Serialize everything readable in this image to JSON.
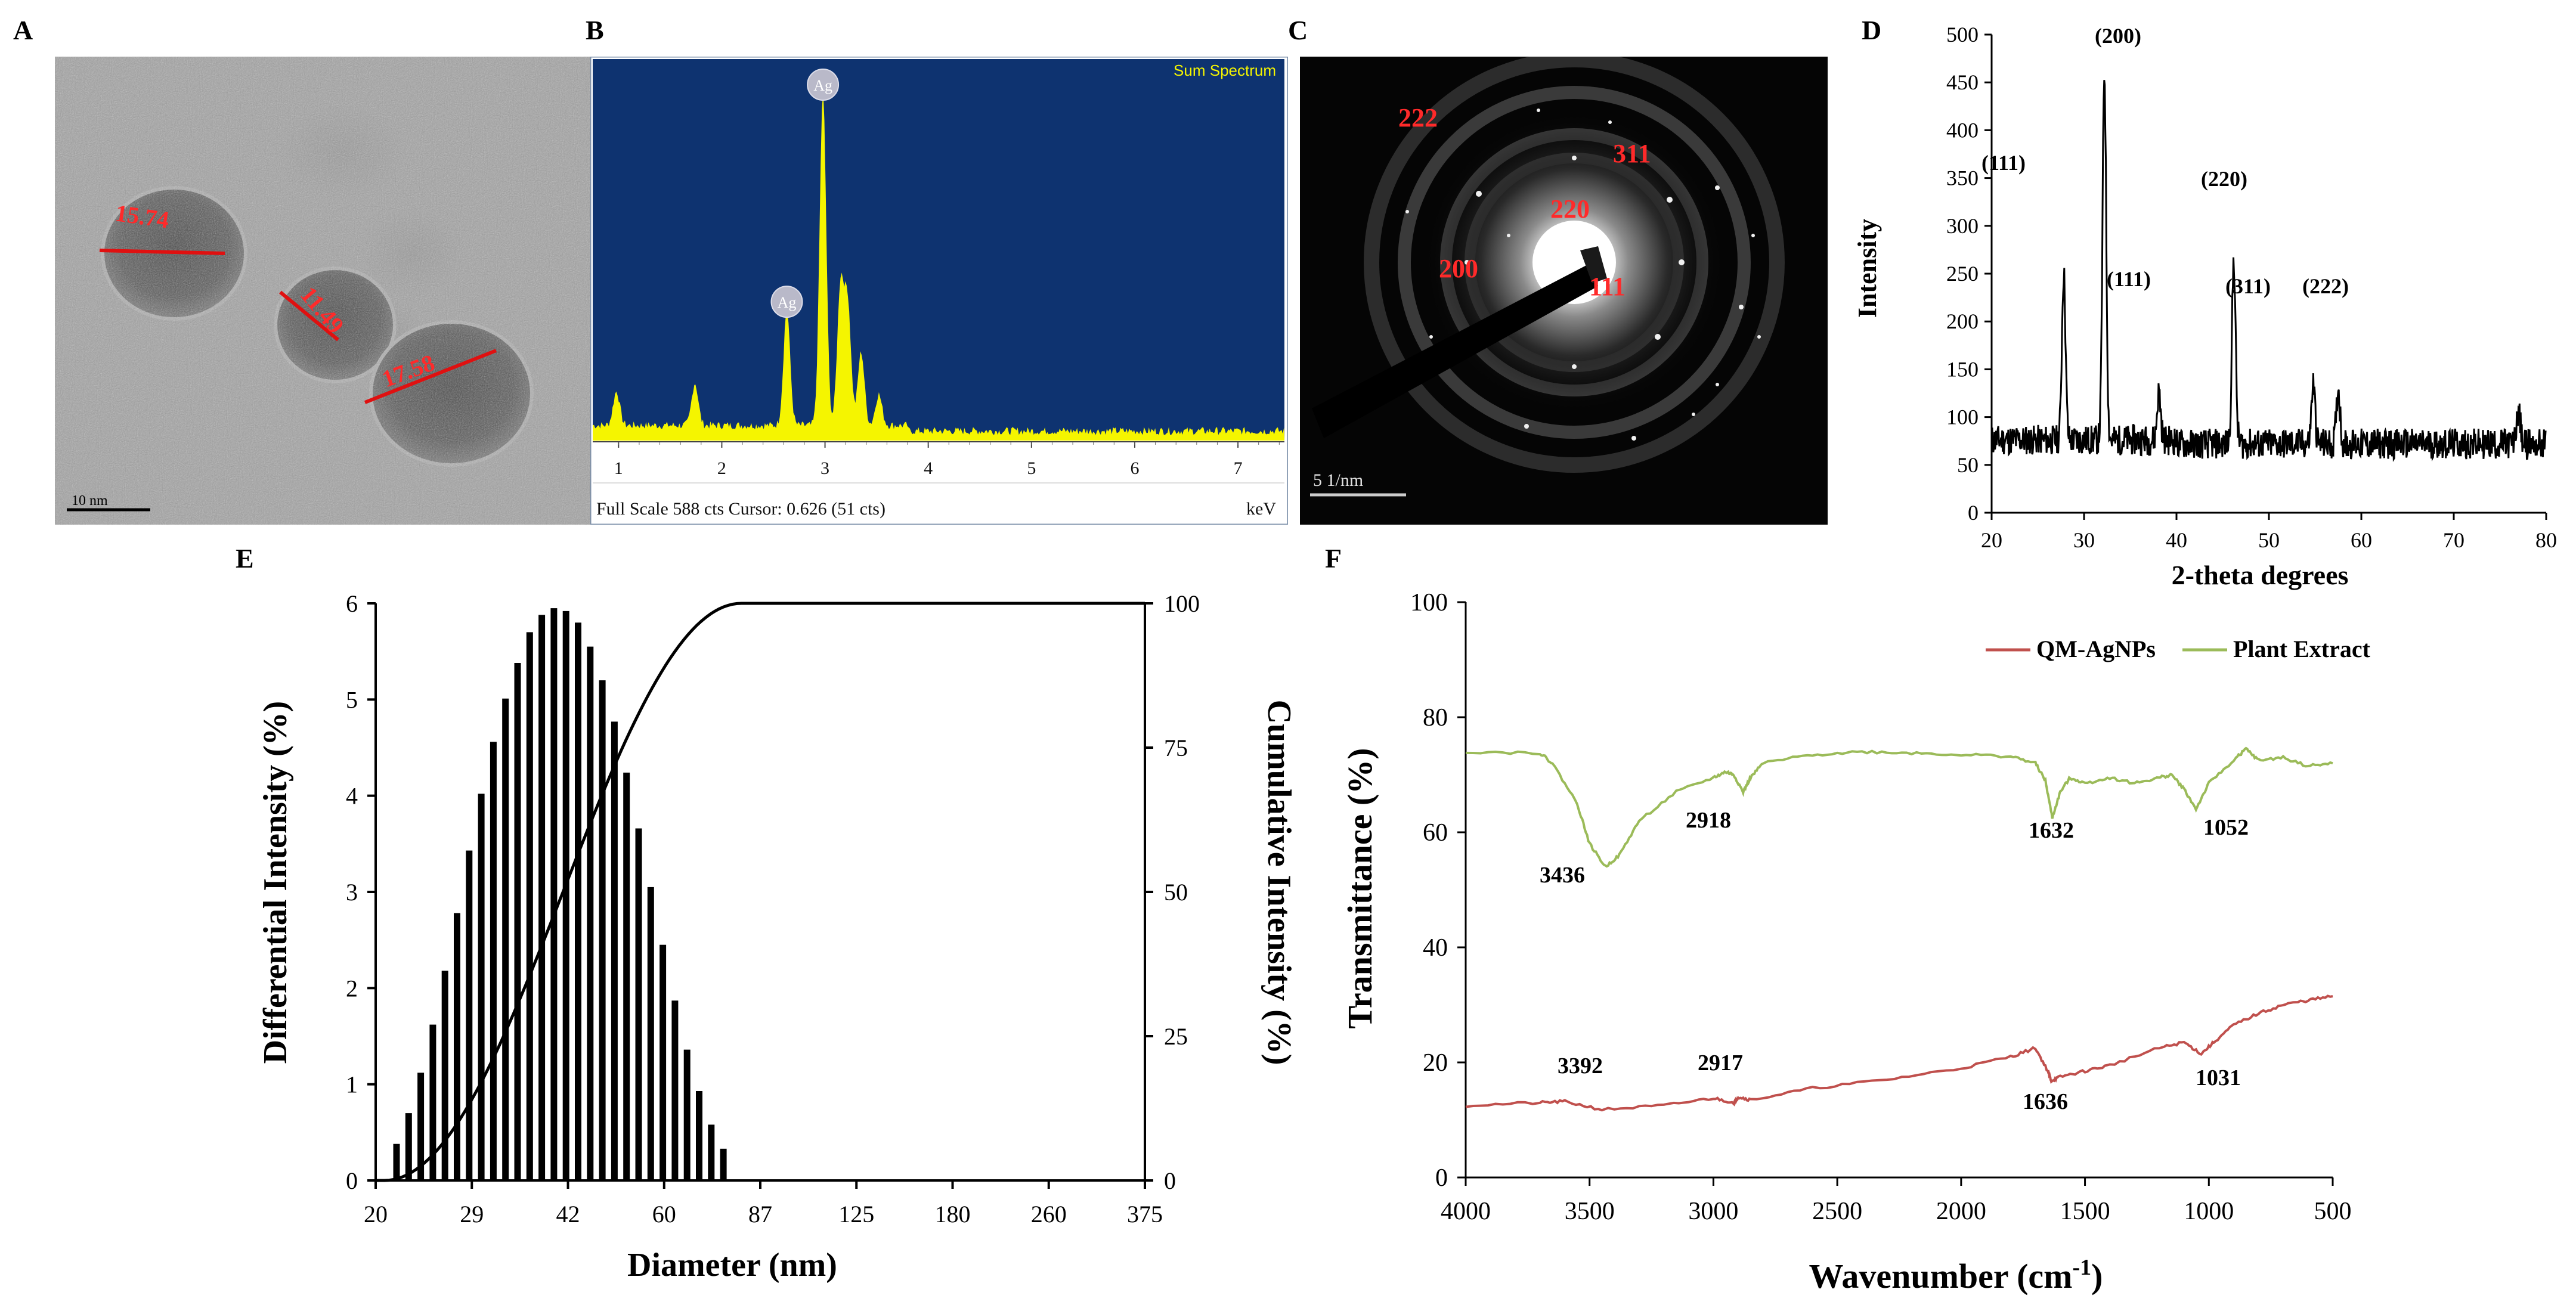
{
  "panel_letters": {
    "a": "A",
    "b": "B",
    "c": "C",
    "d": "D",
    "e": "E",
    "f": "F"
  },
  "panel_a": {
    "measurements": [
      "15.74",
      "11.49",
      "17.58"
    ],
    "scale_bar": "10 nm",
    "colors": {
      "line": "#e01010",
      "label": "#ff2a2a"
    }
  },
  "panel_b": {
    "chart_data": {
      "type": "bar",
      "title": "Sum Spectrum",
      "x_ticks": [
        "1",
        "2",
        "3",
        "4",
        "5",
        "6",
        "7"
      ],
      "xlabel": "keV",
      "xlim": [
        0.75,
        7.45
      ],
      "ylim": [
        0,
        588
      ],
      "peaks": [
        {
          "label": "Ag",
          "x": 2.98,
          "y": 588
        },
        {
          "label": "Ag",
          "x": 2.63,
          "y": 205
        }
      ],
      "footer": "Full Scale 588 cts Cursor: 0.626  (51 cts)",
      "colors": {
        "background": "#0e3370",
        "fill": "#f5f500",
        "title": "#f5f500"
      }
    }
  },
  "panel_c": {
    "ring_labels": [
      "222",
      "311",
      "220",
      "200",
      "111"
    ],
    "scale_bar": "5 1/nm"
  },
  "panel_d": {
    "chart_data": {
      "type": "line",
      "xlabel": "2-theta degrees",
      "ylabel": "Intensity",
      "xlim": [
        20,
        80
      ],
      "ylim": [
        0,
        500
      ],
      "x_ticks": [
        "20",
        "30",
        "40",
        "50",
        "60",
        "70",
        "80"
      ],
      "y_ticks": [
        "0",
        "50",
        "100",
        "150",
        "200",
        "250",
        "300",
        "350",
        "400",
        "450",
        "500"
      ],
      "peaks": [
        {
          "x": 27.8,
          "y": 247
        },
        {
          "x": 32.2,
          "y": 457
        },
        {
          "x": 38.1,
          "y": 122
        },
        {
          "x": 46.2,
          "y": 265
        },
        {
          "x": 54.8,
          "y": 135
        },
        {
          "x": 57.5,
          "y": 130
        },
        {
          "x": 77.0,
          "y": 108
        }
      ],
      "baseline": 72,
      "annotations": [
        "(200)",
        "(111)",
        "(220)",
        "(111)",
        "(311)",
        "(222)"
      ]
    }
  },
  "panel_e": {
    "chart_data": {
      "type": "bar",
      "xlabel": "Diameter (nm)",
      "ylabel": "Differential Intensity (%)",
      "y2label": "Cumulative Intensity (%)",
      "ylim": [
        0,
        6
      ],
      "y2lim": [
        0,
        100
      ],
      "y_ticks": [
        "0",
        "1",
        "2",
        "3",
        "4",
        "5",
        "6"
      ],
      "y2_ticks": [
        "0",
        "25",
        "50",
        "75",
        "100"
      ],
      "x_ticks": [
        "20",
        "29",
        "42",
        "60",
        "87",
        "125",
        "180",
        "260",
        "375"
      ],
      "bars": [
        0.38,
        0.7,
        1.12,
        1.62,
        2.18,
        2.78,
        3.43,
        4.02,
        4.56,
        5.01,
        5.38,
        5.7,
        5.88,
        5.95,
        5.92,
        5.8,
        5.55,
        5.2,
        4.77,
        4.24,
        3.66,
        3.05,
        2.45,
        1.87,
        1.36,
        0.93,
        0.58,
        0.33
      ],
      "series": [
        {
          "name": "Differential",
          "type": "bar"
        },
        {
          "name": "Cumulative",
          "type": "line"
        }
      ]
    }
  },
  "panel_f": {
    "chart_data": {
      "type": "line",
      "xlabel": "Wavenumber (cm",
      "xlabel_sup": "-1",
      "xlabel_end": ")",
      "ylabel": "Transmittance (%)",
      "xlim": [
        4000,
        500
      ],
      "ylim": [
        0,
        100
      ],
      "x_ticks": [
        "4000",
        "3500",
        "3000",
        "2500",
        "2000",
        "1500",
        "1000",
        "500"
      ],
      "y_ticks": [
        "0",
        "20",
        "40",
        "60",
        "80",
        "100"
      ],
      "series": [
        {
          "name": "QM-AgNPs",
          "color": "#c0504d",
          "x": [
            4000,
            3700,
            3600,
            3450,
            3200,
            3000,
            2917,
            2900,
            2850,
            2600,
            2300,
            2000,
            1800,
            1700,
            1650,
            1636,
            1600,
            1500,
            1400,
            1200,
            1100,
            1031,
            980,
            900,
            800,
            700,
            600,
            500
          ],
          "y": [
            12.5,
            13.0,
            13.2,
            11.8,
            12.5,
            13.8,
            13.0,
            14.0,
            13.5,
            15.5,
            17.0,
            19.0,
            21.0,
            22.5,
            18.5,
            16.8,
            17.5,
            18.5,
            19.5,
            22.5,
            23.5,
            21.5,
            23.5,
            26.5,
            28.5,
            30.0,
            30.8,
            31.5
          ]
        },
        {
          "name": "Plant Extract",
          "color": "#9bbb59",
          "x": [
            4000,
            3700,
            3650,
            3550,
            3500,
            3436,
            3380,
            3300,
            3150,
            3000,
            2950,
            2918,
            2880,
            2850,
            2800,
            2600,
            2400,
            2200,
            2000,
            1800,
            1700,
            1660,
            1632,
            1600,
            1560,
            1500,
            1400,
            1300,
            1200,
            1150,
            1100,
            1052,
            1000,
            900,
            850,
            800,
            700,
            600,
            500
          ],
          "y": [
            74.0,
            73.8,
            72.0,
            65.0,
            58.0,
            54.0,
            56.0,
            62.0,
            67.0,
            69.5,
            70.5,
            70.0,
            67.0,
            69.5,
            72.0,
            73.5,
            74.0,
            73.8,
            73.5,
            73.2,
            72.0,
            69.0,
            62.5,
            67.0,
            69.5,
            68.5,
            69.5,
            68.5,
            69.5,
            70.0,
            67.5,
            64.0,
            68.5,
            72.5,
            74.5,
            72.5,
            73.0,
            71.5,
            72.0
          ]
        }
      ],
      "annotations": [
        {
          "text": "3436",
          "series": "Plant Extract"
        },
        {
          "text": "2918",
          "series": "Plant Extract"
        },
        {
          "text": "1632",
          "series": "Plant Extract"
        },
        {
          "text": "1052",
          "series": "Plant Extract"
        },
        {
          "text": "3392",
          "series": "QM-AgNPs"
        },
        {
          "text": "2917",
          "series": "QM-AgNPs"
        },
        {
          "text": "1636",
          "series": "QM-AgNPs"
        },
        {
          "text": "1031",
          "series": "QM-AgNPs"
        }
      ],
      "legend_position": "top-right"
    }
  }
}
